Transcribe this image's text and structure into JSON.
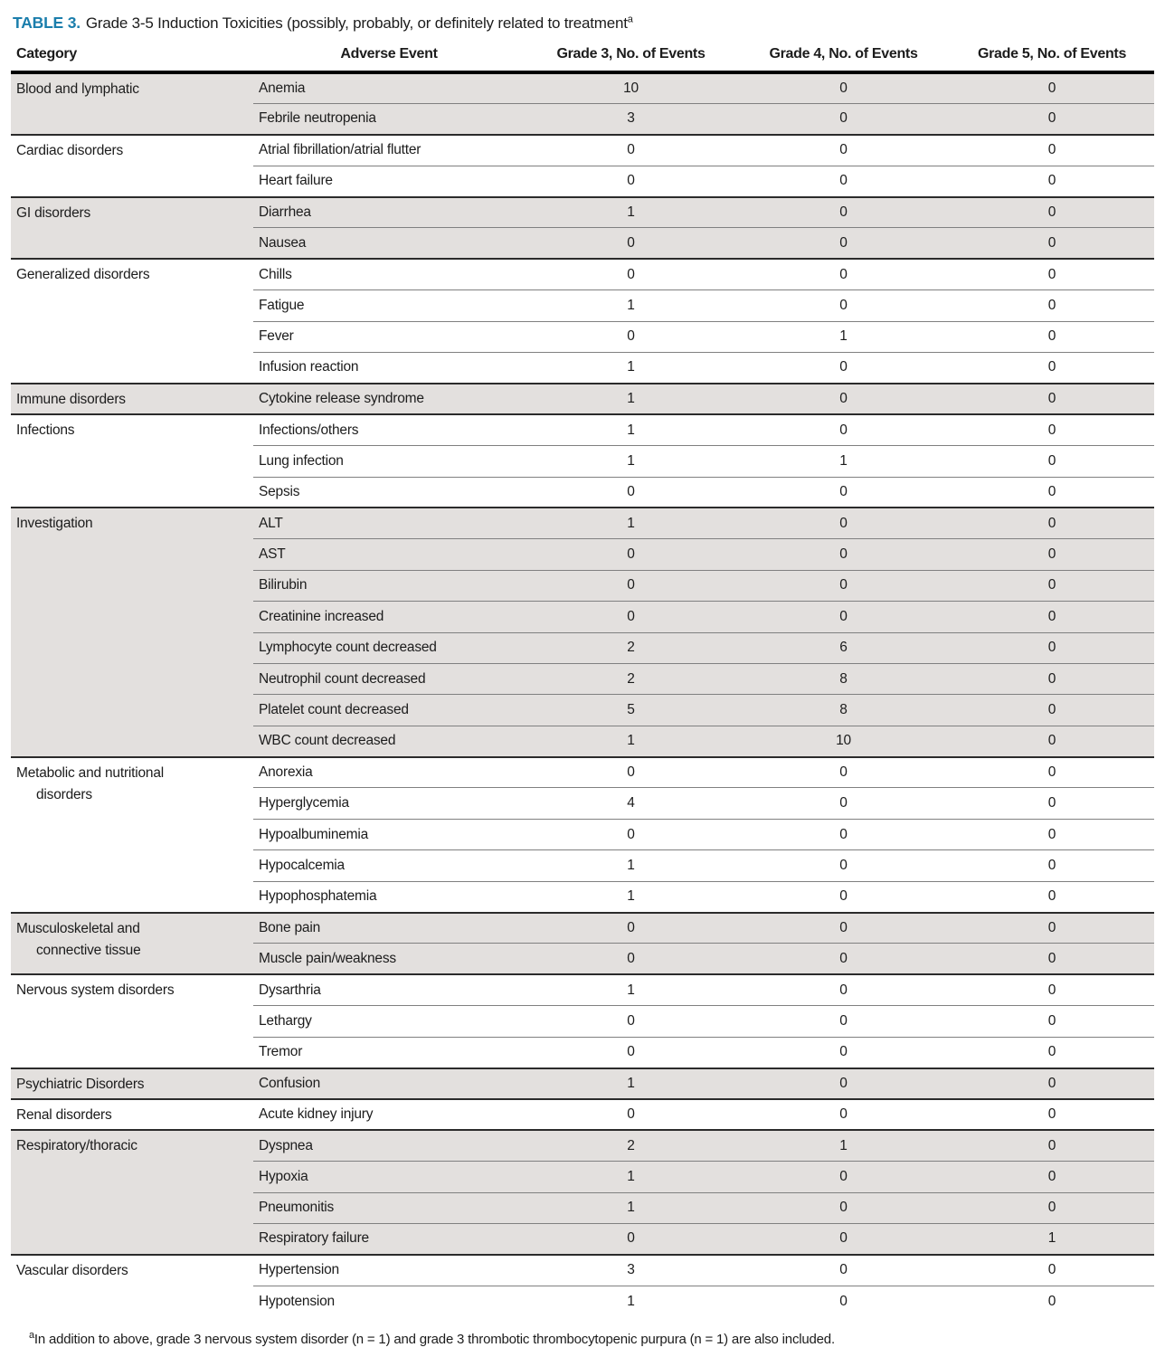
{
  "title": {
    "label": "TABLE 3.",
    "text": "Grade 3-5 Induction Toxicities (possibly, probably, or definitely related to treatment",
    "superscript": "a"
  },
  "table": {
    "columns": [
      "Category",
      "Adverse Event",
      "Grade 3, No. of Events",
      "Grade 4, No. of Events",
      "Grade 5, No. of Events"
    ],
    "groups": [
      {
        "category": "Blood and lymphatic",
        "rows": [
          {
            "adverse_event": "Anemia",
            "grade3": "10",
            "grade4": "0",
            "grade5": "0"
          },
          {
            "adverse_event": "Febrile neutropenia",
            "grade3": "3",
            "grade4": "0",
            "grade5": "0"
          }
        ]
      },
      {
        "category": "Cardiac disorders",
        "rows": [
          {
            "adverse_event": "Atrial fibrillation/atrial flutter",
            "grade3": "0",
            "grade4": "0",
            "grade5": "0"
          },
          {
            "adverse_event": "Heart failure",
            "grade3": "0",
            "grade4": "0",
            "grade5": "0"
          }
        ]
      },
      {
        "category": "GI disorders",
        "rows": [
          {
            "adverse_event": "Diarrhea",
            "grade3": "1",
            "grade4": "0",
            "grade5": "0"
          },
          {
            "adverse_event": "Nausea",
            "grade3": "0",
            "grade4": "0",
            "grade5": "0"
          }
        ]
      },
      {
        "category": "Generalized disorders",
        "rows": [
          {
            "adverse_event": "Chills",
            "grade3": "0",
            "grade4": "0",
            "grade5": "0"
          },
          {
            "adverse_event": "Fatigue",
            "grade3": "1",
            "grade4": "0",
            "grade5": "0"
          },
          {
            "adverse_event": "Fever",
            "grade3": "0",
            "grade4": "1",
            "grade5": "0"
          },
          {
            "adverse_event": "Infusion reaction",
            "grade3": "1",
            "grade4": "0",
            "grade5": "0"
          }
        ]
      },
      {
        "category": "Immune disorders",
        "rows": [
          {
            "adverse_event": "Cytokine release syndrome",
            "grade3": "1",
            "grade4": "0",
            "grade5": "0"
          }
        ]
      },
      {
        "category": "Infections",
        "rows": [
          {
            "adverse_event": "Infections/others",
            "grade3": "1",
            "grade4": "0",
            "grade5": "0"
          },
          {
            "adverse_event": "Lung infection",
            "grade3": "1",
            "grade4": "1",
            "grade5": "0"
          },
          {
            "adverse_event": "Sepsis",
            "grade3": "0",
            "grade4": "0",
            "grade5": "0"
          }
        ]
      },
      {
        "category": "Investigation",
        "rows": [
          {
            "adverse_event": "ALT",
            "grade3": "1",
            "grade4": "0",
            "grade5": "0"
          },
          {
            "adverse_event": "AST",
            "grade3": "0",
            "grade4": "0",
            "grade5": "0"
          },
          {
            "adverse_event": "Bilirubin",
            "grade3": "0",
            "grade4": "0",
            "grade5": "0"
          },
          {
            "adverse_event": "Creatinine increased",
            "grade3": "0",
            "grade4": "0",
            "grade5": "0"
          },
          {
            "adverse_event": "Lymphocyte count decreased",
            "grade3": "2",
            "grade4": "6",
            "grade5": "0"
          },
          {
            "adverse_event": "Neutrophil count decreased",
            "grade3": "2",
            "grade4": "8",
            "grade5": "0"
          },
          {
            "adverse_event": "Platelet count decreased",
            "grade3": "5",
            "grade4": "8",
            "grade5": "0"
          },
          {
            "adverse_event": "WBC count decreased",
            "grade3": "1",
            "grade4": "10",
            "grade5": "0"
          }
        ]
      },
      {
        "category": "Metabolic and nutritional disorders",
        "rows": [
          {
            "adverse_event": "Anorexia",
            "grade3": "0",
            "grade4": "0",
            "grade5": "0"
          },
          {
            "adverse_event": "Hyperglycemia",
            "grade3": "4",
            "grade4": "0",
            "grade5": "0"
          },
          {
            "adverse_event": "Hypoalbuminemia",
            "grade3": "0",
            "grade4": "0",
            "grade5": "0"
          },
          {
            "adverse_event": "Hypocalcemia",
            "grade3": "1",
            "grade4": "0",
            "grade5": "0"
          },
          {
            "adverse_event": "Hypophosphatemia",
            "grade3": "1",
            "grade4": "0",
            "grade5": "0"
          }
        ]
      },
      {
        "category": "Musculoskeletal and connective tissue",
        "rows": [
          {
            "adverse_event": "Bone pain",
            "grade3": "0",
            "grade4": "0",
            "grade5": "0"
          },
          {
            "adverse_event": "Muscle pain/weakness",
            "grade3": "0",
            "grade4": "0",
            "grade5": "0"
          }
        ]
      },
      {
        "category": "Nervous system disorders",
        "rows": [
          {
            "adverse_event": "Dysarthria",
            "grade3": "1",
            "grade4": "0",
            "grade5": "0"
          },
          {
            "adverse_event": "Lethargy",
            "grade3": "0",
            "grade4": "0",
            "grade5": "0"
          },
          {
            "adverse_event": "Tremor",
            "grade3": "0",
            "grade4": "0",
            "grade5": "0"
          }
        ]
      },
      {
        "category": "Psychiatric Disorders",
        "rows": [
          {
            "adverse_event": "Confusion",
            "grade3": "1",
            "grade4": "0",
            "grade5": "0"
          }
        ]
      },
      {
        "category": "Renal disorders",
        "rows": [
          {
            "adverse_event": "Acute kidney injury",
            "grade3": "0",
            "grade4": "0",
            "grade5": "0"
          }
        ]
      },
      {
        "category": "Respiratory/thoracic",
        "rows": [
          {
            "adverse_event": "Dyspnea",
            "grade3": "2",
            "grade4": "1",
            "grade5": "0"
          },
          {
            "adverse_event": "Hypoxia",
            "grade3": "1",
            "grade4": "0",
            "grade5": "0"
          },
          {
            "adverse_event": "Pneumonitis",
            "grade3": "1",
            "grade4": "0",
            "grade5": "0"
          },
          {
            "adverse_event": "Respiratory failure",
            "grade3": "0",
            "grade4": "0",
            "grade5": "1"
          }
        ]
      },
      {
        "category": "Vascular disorders",
        "rows": [
          {
            "adverse_event": "Hypertension",
            "grade3": "3",
            "grade4": "0",
            "grade5": "0"
          },
          {
            "adverse_event": "Hypotension",
            "grade3": "1",
            "grade4": "0",
            "grade5": "0"
          }
        ]
      }
    ]
  },
  "footnote": {
    "superscript": "a",
    "text": "In addition to above, grade 3 nervous system disorder (n = 1) and grade 3 thrombotic thrombocytopenic purpura (n = 1) are also included."
  },
  "colors": {
    "accent": "#1B7EAC",
    "shaded_row": "#E3E0DE",
    "text": "#1c1c1c"
  }
}
